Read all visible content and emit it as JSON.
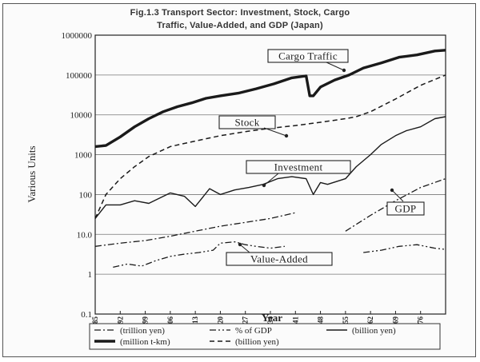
{
  "chart_data": {
    "type": "line",
    "title": "Fig.1.3 Transport Sector: Investment, Stock, Cargo",
    "subtitle": "Traffic, Value-Added, and GDP (Japan)",
    "xlabel": "Year",
    "ylabel": "Various Units",
    "yscale": "log",
    "ylim": [
      0.1,
      1000000
    ],
    "y_ticks": [
      "1000000",
      "100000",
      "10000",
      "1000",
      "100",
      "10.0",
      "1",
      "0.1"
    ],
    "x_ticks": [
      "1885",
      "1892",
      "1899",
      "1906",
      "1913",
      "1920",
      "1927",
      "1934",
      "1941",
      "1948",
      "1955",
      "1962",
      "1969",
      "1976"
    ],
    "xlim": [
      1885,
      1983
    ],
    "grid": true,
    "annotations": [
      "Cargo Traffic",
      "Stock",
      "Investment",
      "GDP",
      "Value-Added"
    ],
    "series": [
      {
        "name": "(million t-km)",
        "style": "thick-solid",
        "x": [
          1885,
          1888,
          1892,
          1896,
          1900,
          1904,
          1908,
          1912,
          1916,
          1920,
          1925,
          1930,
          1935,
          1940,
          1944,
          1945,
          1946,
          1948,
          1952,
          1956,
          1960,
          1965,
          1970,
          1975,
          1980,
          1983
        ],
        "y": [
          1600,
          1700,
          2800,
          5000,
          8000,
          12000,
          16000,
          20000,
          26000,
          30000,
          35000,
          45000,
          60000,
          85000,
          95000,
          30000,
          30000,
          50000,
          75000,
          100000,
          150000,
          200000,
          280000,
          320000,
          400000,
          420000
        ]
      },
      {
        "name": "(billion yen)",
        "style": "dashed",
        "x": [
          1885,
          1888,
          1892,
          1896,
          1900,
          1906,
          1913,
          1920,
          1927,
          1934,
          1941,
          1948,
          1955,
          1958,
          1962,
          1969,
          1976,
          1983
        ],
        "y": [
          25,
          100,
          250,
          500,
          900,
          1600,
          2200,
          3000,
          3800,
          4600,
          5400,
          6500,
          8000,
          9000,
          12000,
          25000,
          55000,
          100000
        ]
      },
      {
        "name": "(billion yen)",
        "style": "solid",
        "x": [
          1885,
          1888,
          1892,
          1896,
          1900,
          1906,
          1910,
          1913,
          1917,
          1920,
          1924,
          1928,
          1932,
          1936,
          1940,
          1944,
          1946,
          1948,
          1950,
          1955,
          1958,
          1962,
          1965,
          1969,
          1972,
          1976,
          1980,
          1983
        ],
        "y": [
          25,
          55,
          55,
          70,
          60,
          110,
          90,
          50,
          140,
          100,
          130,
          150,
          180,
          250,
          280,
          250,
          100,
          200,
          180,
          250,
          500,
          1000,
          1800,
          3000,
          4000,
          5000,
          8000,
          9000
        ]
      },
      {
        "name": "(trillion yen)",
        "style": "dash-dot",
        "x": [
          1885,
          1892,
          1899,
          1906,
          1913,
          1920,
          1927,
          1934,
          1941,
          1955,
          1962,
          1969,
          1976,
          1983
        ],
        "y": [
          5,
          6,
          7,
          9,
          12,
          16,
          20,
          25,
          35,
          12,
          30,
          70,
          150,
          250
        ]
      },
      {
        "name": "% of GDP",
        "style": "dash-dot-dot",
        "x": [
          1890,
          1894,
          1898,
          1902,
          1906,
          1910,
          1914,
          1918,
          1920,
          1924,
          1927,
          1930,
          1934,
          1938,
          1960,
          1965,
          1970,
          1975,
          1980,
          1983
        ],
        "y": [
          1.5,
          1.8,
          1.6,
          2.2,
          2.8,
          3.2,
          3.5,
          4.0,
          6.0,
          6.5,
          5.5,
          5.0,
          4.5,
          5.0,
          3.5,
          4.0,
          5.0,
          5.5,
          4.5,
          4.2
        ]
      }
    ],
    "legend": {
      "position": "bottom",
      "entries": [
        {
          "style": "dash-dot",
          "label": "(trillion yen)"
        },
        {
          "style": "dash-dot-dot",
          "label": "% of GDP"
        },
        {
          "style": "solid",
          "label": "(billion yen)"
        },
        {
          "style": "thick-solid",
          "label": "(million t-km)"
        },
        {
          "style": "dashed",
          "label": "(billion yen)"
        }
      ]
    }
  }
}
